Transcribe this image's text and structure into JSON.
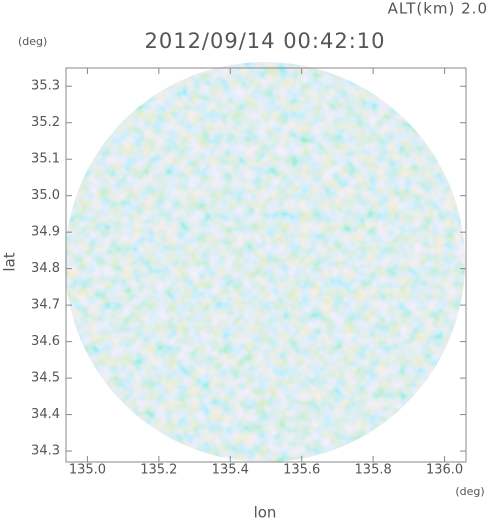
{
  "chart_data": {
    "type": "radar-map",
    "title": "2012/09/14 00:42:10",
    "altitude_label": "ALT(km) 2.0",
    "x_label": "lon",
    "y_label": "lat",
    "x_unit": "(deg)",
    "y_unit": "(deg)",
    "xlim": [
      134.94,
      136.06
    ],
    "ylim": [
      34.27,
      35.35
    ],
    "xticks": [
      {
        "value": 135,
        "label": "135.0"
      },
      135.2,
      135.4,
      135.6,
      135.8,
      {
        "value": 136,
        "label": "136.0"
      }
    ],
    "yticks": [
      34.3,
      34.4,
      34.5,
      34.6,
      34.7,
      34.8,
      34.9,
      {
        "value": 35,
        "label": "35.0"
      },
      35.1,
      35.2,
      35.3
    ]
  }
}
